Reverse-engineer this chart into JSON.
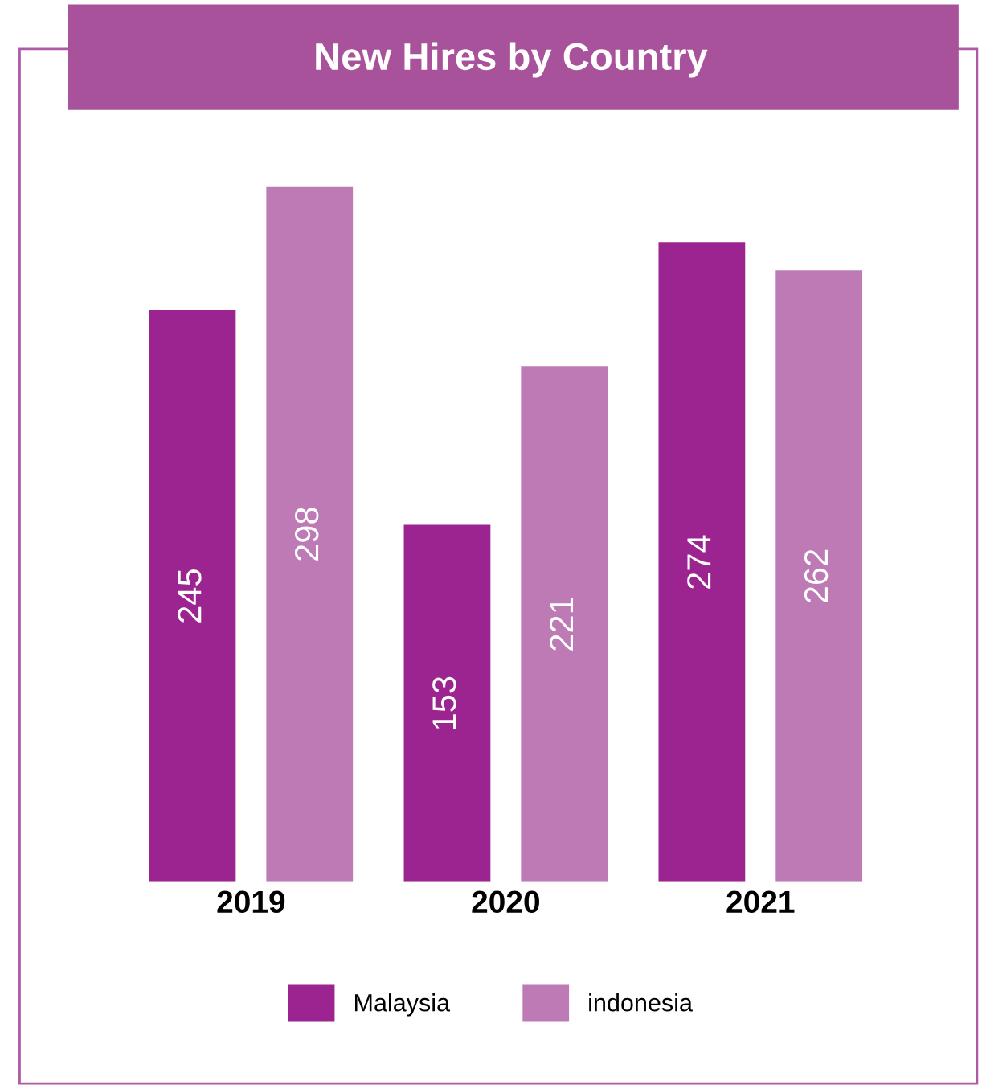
{
  "chart_data": {
    "type": "bar",
    "title": "New Hires by Country",
    "categories": [
      "2019",
      "2020",
      "2021"
    ],
    "series": [
      {
        "name": "Malaysia",
        "color": "#9c2490",
        "values": [
          245,
          153,
          274
        ]
      },
      {
        "name": "indonesia",
        "color": "#bd7ab5",
        "values": [
          298,
          221,
          262
        ]
      }
    ],
    "data_labels": true,
    "legend": "bottom",
    "grid": false
  }
}
